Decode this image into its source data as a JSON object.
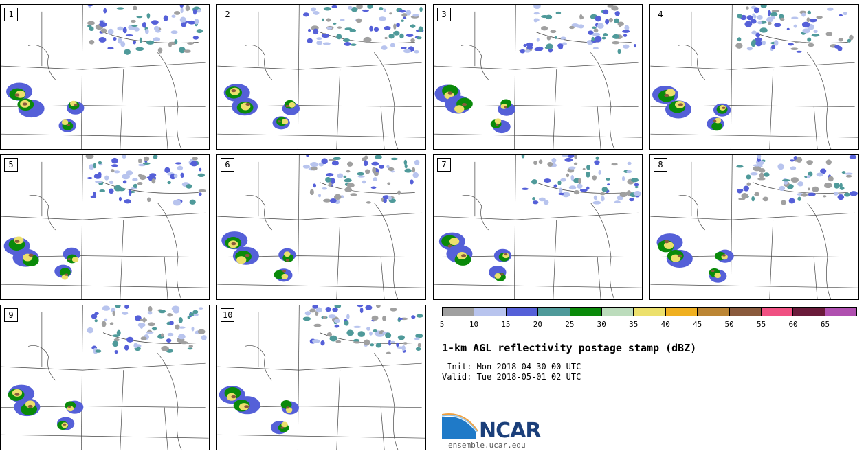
{
  "panels": [
    {
      "label": "1"
    },
    {
      "label": "2"
    },
    {
      "label": "3"
    },
    {
      "label": "4"
    },
    {
      "label": "5"
    },
    {
      "label": "6"
    },
    {
      "label": "7"
    },
    {
      "label": "8"
    },
    {
      "label": "9"
    },
    {
      "label": "10"
    }
  ],
  "colorbar": {
    "colors": [
      "#a0a0a0",
      "#b8c4ee",
      "#5560d8",
      "#4f9a9a",
      "#0a8a0a",
      "#bcdcbc",
      "#ece06c",
      "#f0b020",
      "#bc8634",
      "#8a5a3c",
      "#f05082",
      "#6a1a3a",
      "#b050b0"
    ],
    "ticks": [
      "5",
      "10",
      "15",
      "20",
      "25",
      "30",
      "35",
      "40",
      "45",
      "50",
      "55",
      "60",
      "65"
    ]
  },
  "title": "1-km AGL reflectivity postage stamp (dBZ)",
  "init_line": " Init: Mon 2018-04-30 00 UTC",
  "valid_line": "Valid: Tue 2018-05-01 02 UTC",
  "logo_text": "NCAR",
  "url": "ensemble.ucar.edu"
}
